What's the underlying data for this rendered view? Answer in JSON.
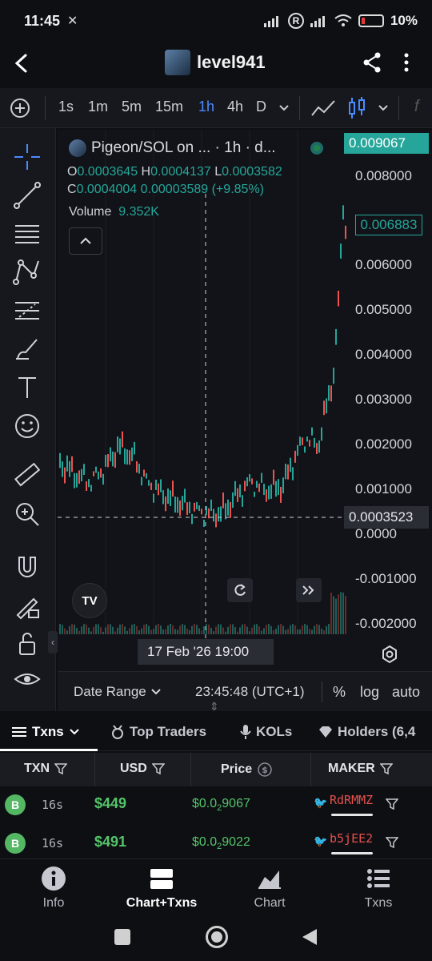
{
  "status": {
    "time": "11:45",
    "battery": "10%"
  },
  "header": {
    "title": "level941"
  },
  "toolbar": {
    "timeframes": [
      "1s",
      "1m",
      "5m",
      "15m",
      "1h",
      "4h",
      "D"
    ],
    "active_timeframe": "1h"
  },
  "chart": {
    "pair": "Pigeon/SOL on ... · 1h · d...",
    "open_label": "O",
    "open": "0.0003645",
    "high_label": "H",
    "high": "0.0004137",
    "low_label": "L",
    "low": "0.0003582",
    "close_label": "C",
    "close": "0.0004004",
    "change": "0.00003589 (+9.85%)",
    "volume_label": "Volume",
    "volume": "9.352K",
    "price_axis": [
      "0.008000",
      "0.006000",
      "0.005000",
      "0.004000",
      "0.003000",
      "0.002000",
      "0.001000",
      "0.0000",
      "-0.001000",
      "-0.002000"
    ],
    "current_price_tag": "0.009067",
    "hover_price_tag": "0.006883",
    "crosshair_price_tag": "0.0003523",
    "crosshair_time": "17 Feb '26   19:00",
    "tv_logo_text": "TV"
  },
  "datebar": {
    "date_range": "Date Range",
    "clock": "23:45:48 (UTC+1)",
    "percent": "%",
    "log": "log",
    "auto": "auto"
  },
  "tabs": [
    "Txns",
    "Top Traders",
    "KOLs",
    "Holders (6,4"
  ],
  "table": {
    "headers": [
      "TXN",
      "USD",
      "Price",
      "MAKER"
    ],
    "rows": [
      {
        "type": "B",
        "age": "16s",
        "usd": "$449",
        "price_prefix": "$0.0",
        "price_sub": "2",
        "price_rest": "9067",
        "maker": "RdRMMZ"
      },
      {
        "type": "B",
        "age": "16s",
        "usd": "$491",
        "price_prefix": "$0.0",
        "price_sub": "2",
        "price_rest": "9022",
        "maker": "b5jEE2"
      }
    ]
  },
  "nav": [
    "Info",
    "Chart+Txns",
    "Chart",
    "Txns"
  ],
  "colors": {
    "up": "#26a69a",
    "down": "#ef5350",
    "accent": "#4a8bff",
    "buy": "#54c46a"
  }
}
